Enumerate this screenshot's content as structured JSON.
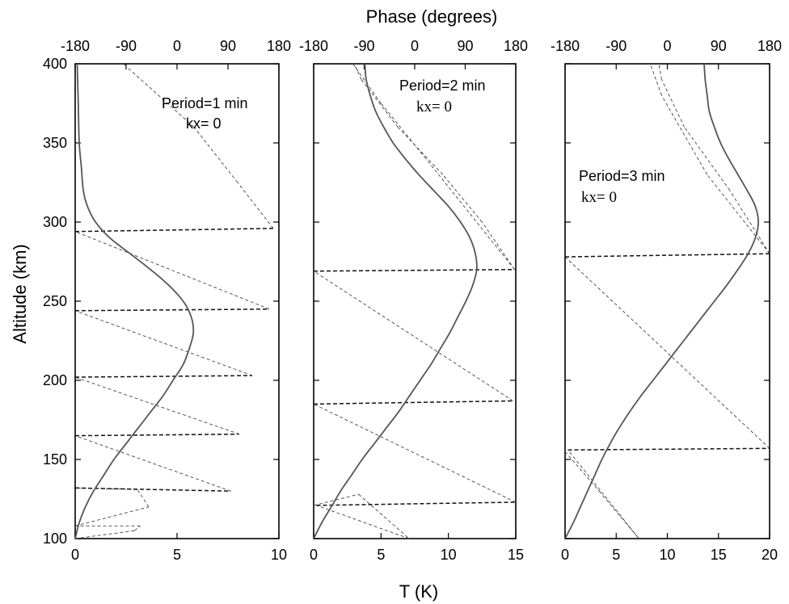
{
  "figure": {
    "top_axis_title": "Phase (degrees)",
    "bottom_axis_title": "T  (K)",
    "y_axis_title": "Altitude (km)"
  },
  "chart_data": [
    {
      "type": "line",
      "annotation_line1": "Period=1 min",
      "annotation_line2": "kx= 0",
      "xlabel": "T  (K)",
      "x2label": "Phase (degrees)",
      "ylabel": "Altitude (km)",
      "xlim": [
        0,
        10
      ],
      "x2lim": [
        -180,
        180
      ],
      "ylim": [
        100,
        400
      ],
      "xticks": [
        "0",
        "5",
        "10"
      ],
      "x2ticks": [
        "-180",
        "-90",
        "0",
        "90",
        "180"
      ],
      "yticks": [
        "100",
        "150",
        "200",
        "250",
        "300",
        "350",
        "400"
      ],
      "grid": false,
      "series": [
        {
          "kind": "temperature",
          "axis": "bottom",
          "points": [
            [
              0.0,
              100
            ],
            [
              0.2,
              110
            ],
            [
              0.5,
              120
            ],
            [
              0.9,
              130
            ],
            [
              1.4,
              140
            ],
            [
              1.9,
              150
            ],
            [
              2.5,
              160
            ],
            [
              3.1,
              170
            ],
            [
              3.7,
              180
            ],
            [
              4.3,
              190
            ],
            [
              4.8,
              200
            ],
            [
              5.3,
              210
            ],
            [
              5.6,
              220
            ],
            [
              5.8,
              230
            ],
            [
              5.7,
              240
            ],
            [
              5.3,
              250
            ],
            [
              4.6,
              260
            ],
            [
              3.7,
              270
            ],
            [
              2.7,
              280
            ],
            [
              1.7,
              290
            ],
            [
              1.0,
              300
            ],
            [
              0.6,
              310
            ],
            [
              0.4,
              320
            ],
            [
              0.3,
              335
            ],
            [
              0.2,
              350
            ],
            [
              0.15,
              375
            ],
            [
              0.1,
              400
            ]
          ]
        },
        {
          "kind": "phase",
          "axis": "top",
          "points": [
            [
              -180,
              100
            ],
            [
              -75,
              105
            ],
            [
              -65,
              108
            ],
            [
              -180,
              108
            ],
            [
              -50,
              120
            ],
            [
              -70,
              131
            ],
            [
              -180,
              132
            ],
            [
              95,
              130
            ],
            [
              -180,
              165
            ],
            [
              110,
              166
            ],
            [
              -180,
              202
            ],
            [
              133,
              203
            ],
            [
              -180,
              244
            ],
            [
              163,
              245
            ],
            [
              -180,
              294
            ],
            [
              170,
              296
            ],
            [
              107,
              325
            ],
            [
              30,
              360
            ],
            [
              -95,
              400
            ]
          ]
        }
      ]
    },
    {
      "type": "line",
      "annotation_line1": "Period=2 min",
      "annotation_line2": "kx= 0",
      "xlabel": "T  (K)",
      "x2label": "Phase (degrees)",
      "ylabel": "Altitude (km)",
      "xlim": [
        0,
        15
      ],
      "x2lim": [
        -180,
        180
      ],
      "ylim": [
        100,
        400
      ],
      "xticks": [
        "0",
        "5",
        "10",
        "15"
      ],
      "x2ticks": [
        "-180",
        "-90",
        "0",
        "90",
        "180"
      ],
      "yticks": [
        "100",
        "150",
        "200",
        "250",
        "300",
        "350",
        "400"
      ],
      "grid": false,
      "series": [
        {
          "kind": "temperature",
          "axis": "bottom",
          "points": [
            [
              0.0,
              100
            ],
            [
              0.6,
              110
            ],
            [
              1.3,
              120
            ],
            [
              2.0,
              130
            ],
            [
              2.8,
              140
            ],
            [
              3.6,
              150
            ],
            [
              4.5,
              160
            ],
            [
              5.4,
              170
            ],
            [
              6.3,
              180
            ],
            [
              7.1,
              190
            ],
            [
              7.9,
              200
            ],
            [
              8.7,
              210
            ],
            [
              9.4,
              220
            ],
            [
              10.1,
              230
            ],
            [
              10.7,
              240
            ],
            [
              11.3,
              250
            ],
            [
              11.8,
              260
            ],
            [
              12.1,
              270
            ],
            [
              12.0,
              280
            ],
            [
              11.6,
              290
            ],
            [
              10.9,
              300
            ],
            [
              10.0,
              310
            ],
            [
              8.9,
              320
            ],
            [
              7.8,
              330
            ],
            [
              6.8,
              340
            ],
            [
              5.9,
              350
            ],
            [
              5.2,
              360
            ],
            [
              4.6,
              370
            ],
            [
              4.2,
              380
            ],
            [
              3.9,
              390
            ],
            [
              3.8,
              400
            ]
          ]
        },
        {
          "kind": "phase",
          "axis": "top",
          "points": [
            [
              -180,
              121
            ],
            [
              -180,
              121
            ],
            [
              -100,
              128
            ],
            [
              -10,
              100
            ],
            [
              -175,
              121
            ],
            [
              180,
              123
            ],
            [
              -180,
              185
            ],
            [
              175,
              187
            ],
            [
              -180,
              269
            ],
            [
              178,
              270
            ],
            [
              20,
              340
            ],
            [
              -60,
              375
            ],
            [
              -110,
              400
            ]
          ]
        },
        {
          "kind": "phase-reference",
          "axis": "top",
          "points": [
            [
              178,
              270
            ],
            [
              120,
              300
            ],
            [
              50,
              330
            ],
            [
              -30,
              360
            ],
            [
              -95,
              390
            ],
            [
              -108,
              400
            ]
          ]
        }
      ]
    },
    {
      "type": "line",
      "annotation_line1": "Period=3 min",
      "annotation_line2": "kx= 0",
      "xlabel": "T  (K)",
      "x2label": "Phase (degrees)",
      "ylabel": "Altitude (km)",
      "xlim": [
        0,
        20
      ],
      "x2lim": [
        -180,
        180
      ],
      "ylim": [
        100,
        400
      ],
      "xticks": [
        "0",
        "5",
        "10",
        "15",
        "20"
      ],
      "x2ticks": [
        "-180",
        "-90",
        "0",
        "90",
        "180"
      ],
      "yticks": [
        "100",
        "150",
        "200",
        "250",
        "300",
        "350",
        "400"
      ],
      "grid": false,
      "series": [
        {
          "kind": "temperature",
          "axis": "bottom",
          "points": [
            [
              0.0,
              100
            ],
            [
              0.8,
              110
            ],
            [
              1.5,
              120
            ],
            [
              2.2,
              130
            ],
            [
              2.9,
              140
            ],
            [
              3.6,
              150
            ],
            [
              4.4,
              160
            ],
            [
              5.3,
              170
            ],
            [
              6.3,
              180
            ],
            [
              7.4,
              190
            ],
            [
              8.6,
              200
            ],
            [
              9.8,
              210
            ],
            [
              11.0,
              220
            ],
            [
              12.2,
              230
            ],
            [
              13.4,
              240
            ],
            [
              14.6,
              250
            ],
            [
              15.8,
              260
            ],
            [
              16.9,
              270
            ],
            [
              17.9,
              280
            ],
            [
              18.6,
              290
            ],
            [
              18.9,
              300
            ],
            [
              18.6,
              310
            ],
            [
              17.8,
              320
            ],
            [
              16.9,
              330
            ],
            [
              16.0,
              340
            ],
            [
              15.2,
              350
            ],
            [
              14.6,
              360
            ],
            [
              14.1,
              370
            ],
            [
              13.9,
              380
            ],
            [
              13.7,
              390
            ],
            [
              13.6,
              400
            ]
          ]
        },
        {
          "kind": "phase",
          "axis": "top",
          "points": [
            [
              -180,
              155
            ],
            [
              -180,
              155
            ],
            [
              -120,
              130
            ],
            [
              -50,
              100
            ],
            [
              -175,
              156
            ],
            [
              180,
              157
            ],
            [
              -180,
              278
            ],
            [
              180,
              280
            ],
            [
              70,
              330
            ],
            [
              -10,
              380
            ],
            [
              -30,
              400
            ]
          ]
        },
        {
          "kind": "phase-reference",
          "axis": "top",
          "points": [
            [
              180,
              280
            ],
            [
              110,
              320
            ],
            [
              30,
              360
            ],
            [
              -10,
              390
            ],
            [
              -15,
              400
            ]
          ]
        }
      ]
    }
  ]
}
